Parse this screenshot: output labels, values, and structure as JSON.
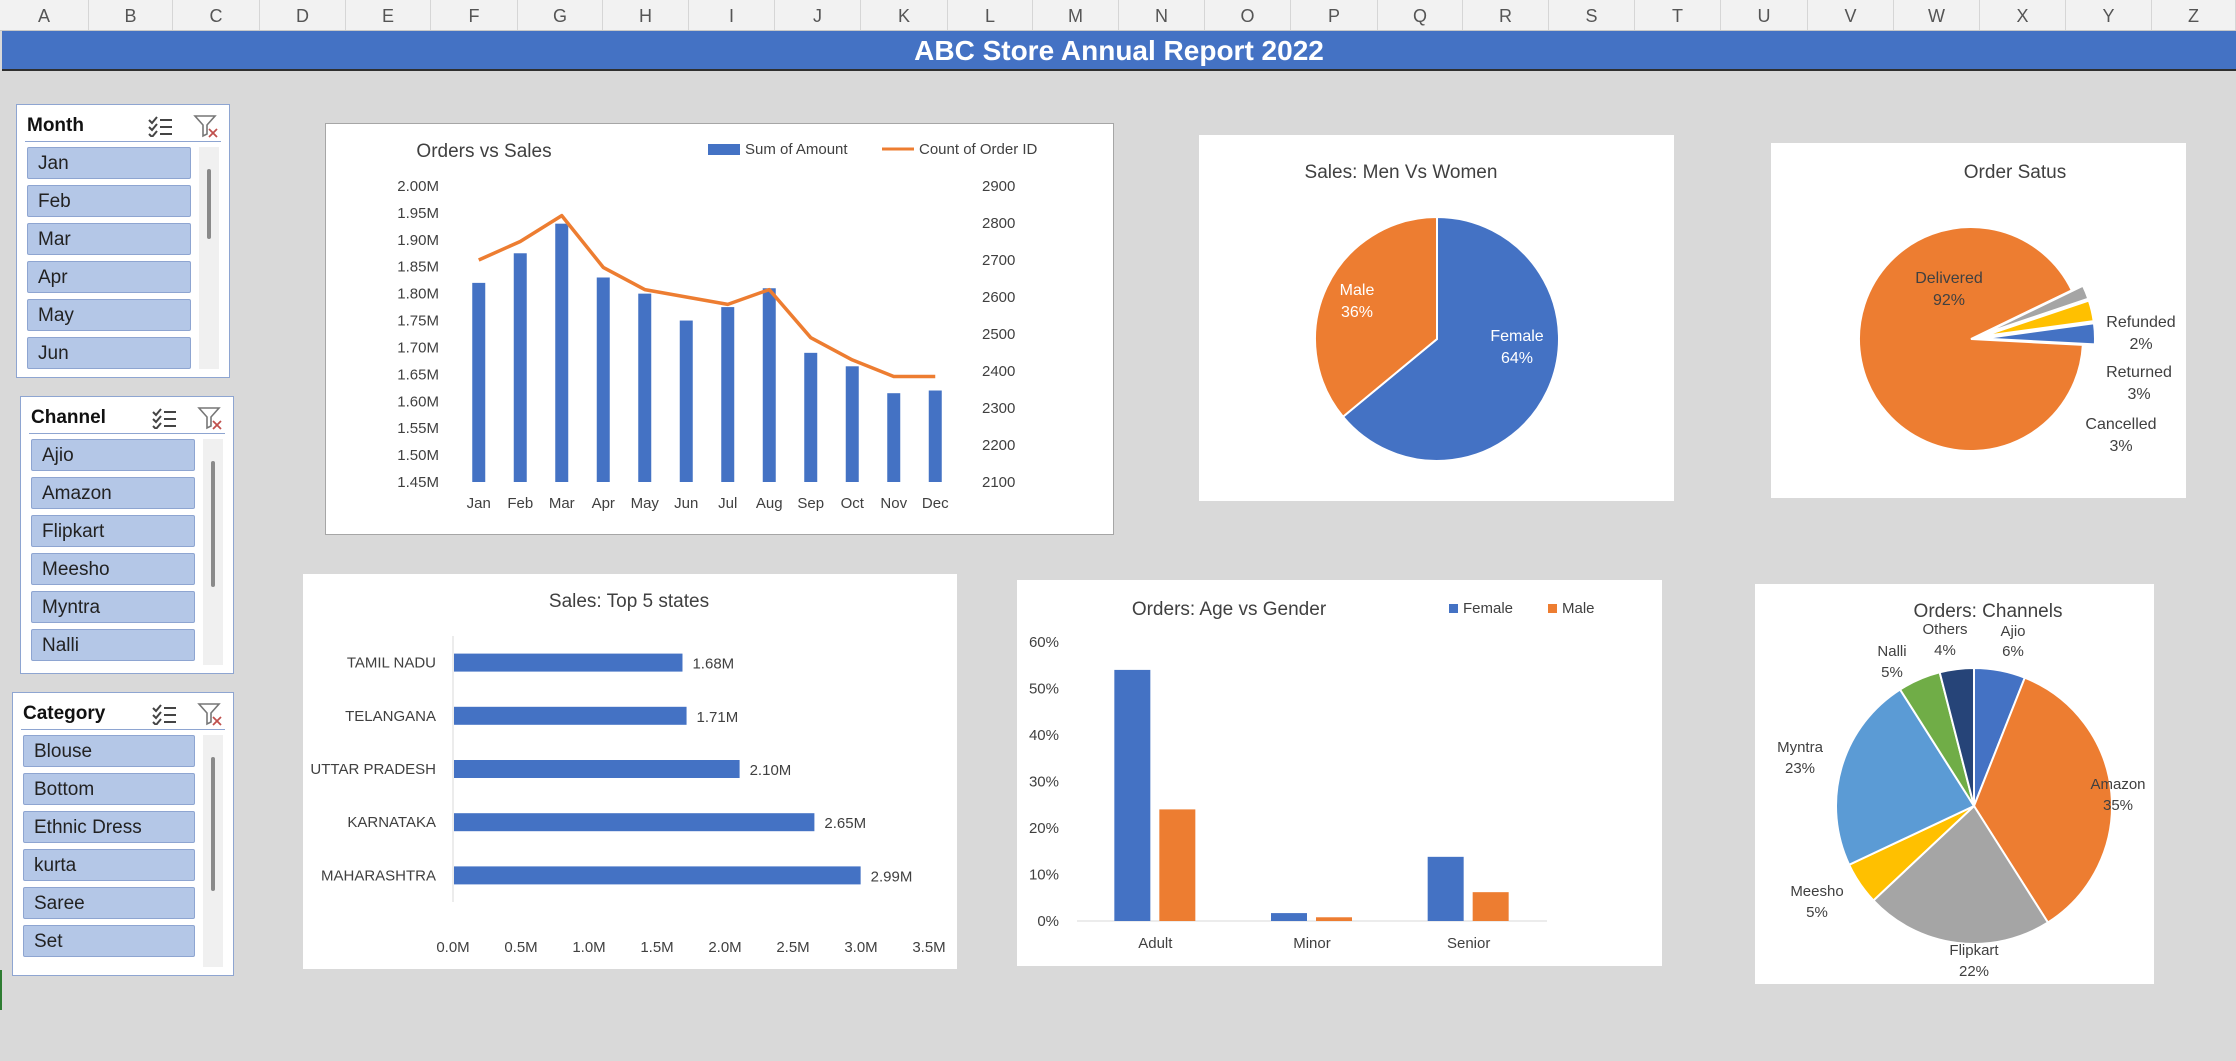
{
  "columns": [
    "A",
    "B",
    "C",
    "D",
    "E",
    "F",
    "G",
    "H",
    "I",
    "J",
    "K",
    "L",
    "M",
    "N",
    "O",
    "P",
    "Q",
    "R",
    "S",
    "T",
    "U",
    "V",
    "W",
    "X",
    "Y",
    "Z"
  ],
  "report_title": "ABC Store Annual Report 2022",
  "slicers": [
    {
      "title": "Month",
      "items": [
        "Jan",
        "Feb",
        "Mar",
        "Apr",
        "May",
        "Jun"
      ]
    },
    {
      "title": "Channel",
      "items": [
        "Ajio",
        "Amazon",
        "Flipkart",
        "Meesho",
        "Myntra",
        "Nalli"
      ]
    },
    {
      "title": "Category",
      "items": [
        "Blouse",
        "Bottom",
        "Ethnic Dress",
        "kurta",
        "Saree",
        "Set"
      ]
    }
  ],
  "colors": {
    "blue": "#4472c4",
    "orange": "#ed7d31",
    "gray": "#a5a5a5",
    "gold": "#ffc000",
    "lightblue": "#5b9bd5",
    "green": "#70ad47",
    "navy": "#264478"
  },
  "chart_data": [
    {
      "id": "orders_vs_sales",
      "type": "bar",
      "title": "Orders vs Sales",
      "categories": [
        "Jan",
        "Feb",
        "Mar",
        "Apr",
        "May",
        "Jun",
        "Jul",
        "Aug",
        "Sep",
        "Oct",
        "Nov",
        "Dec"
      ],
      "series": [
        {
          "name": "Sum of Amount",
          "type": "bar",
          "axis": "left",
          "values": [
            1.82,
            1.875,
            1.93,
            1.83,
            1.8,
            1.75,
            1.775,
            1.81,
            1.69,
            1.665,
            1.615,
            1.62
          ]
        },
        {
          "name": "Count of Order ID",
          "type": "line",
          "axis": "right",
          "values": [
            2700,
            2750,
            2820,
            2680,
            2620,
            2600,
            2580,
            2620,
            2490,
            2430,
            2385,
            2385
          ]
        }
      ],
      "y_left": {
        "min": 1.45,
        "max": 2.0,
        "ticks": [
          "2.00M",
          "1.95M",
          "1.90M",
          "1.85M",
          "1.80M",
          "1.75M",
          "1.70M",
          "1.65M",
          "1.60M",
          "1.55M",
          "1.50M",
          "1.45M"
        ]
      },
      "y_right": {
        "min": 2100,
        "max": 2900,
        "ticks": [
          "2900",
          "2800",
          "2700",
          "2600",
          "2500",
          "2400",
          "2300",
          "2200",
          "2100"
        ]
      },
      "legend": "top-right"
    },
    {
      "id": "men_vs_women",
      "type": "pie",
      "title": "Sales: Men Vs Women",
      "slices": [
        {
          "label": "Female",
          "pct": "64%",
          "value": 64
        },
        {
          "label": "Male",
          "pct": "36%",
          "value": 36
        }
      ]
    },
    {
      "id": "order_status",
      "type": "pie",
      "title": "Order Satus",
      "slices": [
        {
          "label": "Delivered",
          "pct": "92%",
          "value": 92
        },
        {
          "label": "Refunded",
          "pct": "2%",
          "value": 2
        },
        {
          "label": "Returned",
          "pct": "3%",
          "value": 3
        },
        {
          "label": "Cancelled",
          "pct": "3%",
          "value": 3
        }
      ]
    },
    {
      "id": "top_states",
      "type": "bar",
      "orientation": "horizontal",
      "title": "Sales: Top 5 states",
      "categories": [
        "TAMIL NADU",
        "TELANGANA",
        "UTTAR PRADESH",
        "KARNATAKA",
        "MAHARASHTRA"
      ],
      "values": [
        1.68,
        1.71,
        2.1,
        2.65,
        2.99
      ],
      "value_labels": [
        "1.68M",
        "1.71M",
        "2.10M",
        "2.65M",
        "2.99M"
      ],
      "x_ticks": [
        "0.0M",
        "0.5M",
        "1.0M",
        "1.5M",
        "2.0M",
        "2.5M",
        "3.0M",
        "3.5M"
      ],
      "xlim": [
        0,
        3.5
      ]
    },
    {
      "id": "age_vs_gender",
      "type": "bar",
      "title": "Orders: Age vs Gender",
      "categories": [
        "Adult",
        "Minor",
        "Senior"
      ],
      "series": [
        {
          "name": "Female",
          "values": [
            54,
            1.7,
            13.8
          ]
        },
        {
          "name": "Male",
          "values": [
            24,
            0.8,
            6.2
          ]
        }
      ],
      "y_ticks": [
        "60%",
        "50%",
        "40%",
        "30%",
        "20%",
        "10%",
        "0%"
      ],
      "ylim": [
        0,
        60
      ],
      "legend": "top-right"
    },
    {
      "id": "channels",
      "type": "pie",
      "title": "Orders: Channels",
      "slices": [
        {
          "label": "Ajio",
          "pct": "6%",
          "value": 6
        },
        {
          "label": "Amazon",
          "pct": "35%",
          "value": 35
        },
        {
          "label": "Flipkart",
          "pct": "22%",
          "value": 22
        },
        {
          "label": "Meesho",
          "pct": "5%",
          "value": 5
        },
        {
          "label": "Myntra",
          "pct": "23%",
          "value": 23
        },
        {
          "label": "Nalli",
          "pct": "5%",
          "value": 5
        },
        {
          "label": "Others",
          "pct": "4%",
          "value": 4
        }
      ]
    }
  ]
}
